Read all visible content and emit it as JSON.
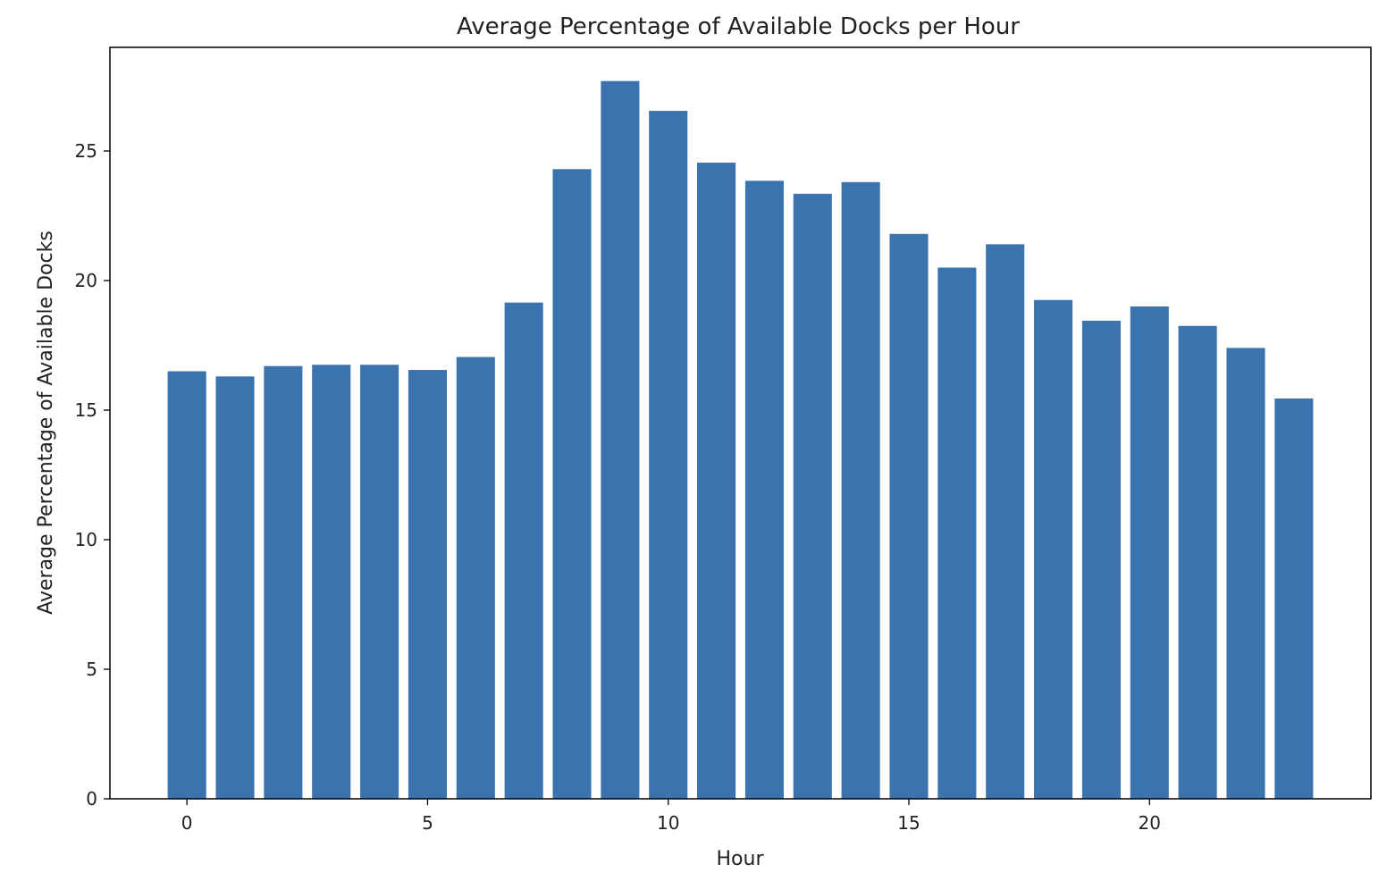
{
  "chart_data": {
    "type": "bar",
    "title": "Average Percentage of Available Docks per Hour",
    "xlabel": "Hour",
    "ylabel": "Average Percentage of Available Docks",
    "categories": [
      0,
      1,
      2,
      3,
      4,
      5,
      6,
      7,
      8,
      9,
      10,
      11,
      12,
      13,
      14,
      15,
      16,
      17,
      18,
      19,
      20,
      21,
      22,
      23
    ],
    "values": [
      16.5,
      16.3,
      16.7,
      16.75,
      16.75,
      16.55,
      17.05,
      19.15,
      24.3,
      27.7,
      26.55,
      24.55,
      23.85,
      23.35,
      23.8,
      21.8,
      20.5,
      21.4,
      19.25,
      18.45,
      19.0,
      18.25,
      17.4,
      15.45
    ],
    "xlim": [
      -1.6,
      24.6
    ],
    "ylim": [
      0,
      29
    ],
    "xticks": [
      0,
      5,
      10,
      15,
      20
    ],
    "yticks": [
      0,
      5,
      10,
      15,
      20,
      25
    ],
    "grid": false,
    "legend": "none",
    "bar_color": "#3a73ad",
    "axis_color": "#000000",
    "text_color": "#222222",
    "background": "#ffffff"
  }
}
